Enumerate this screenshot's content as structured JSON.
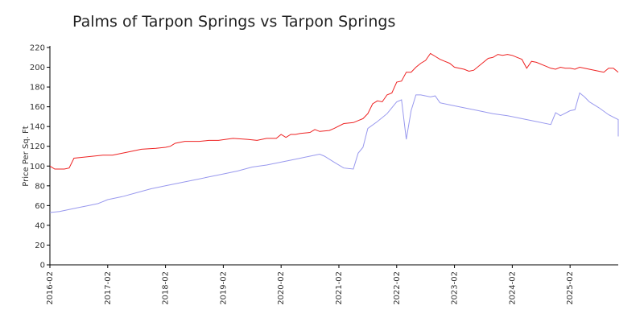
{
  "chart_data": {
    "type": "line",
    "title": "Palms of Tarpon Springs vs Tarpon Springs",
    "xlabel": "",
    "ylabel": "Price Per Sq. Ft",
    "ylim": [
      0,
      220
    ],
    "yticks": [
      0,
      20,
      40,
      60,
      80,
      100,
      120,
      140,
      160,
      180,
      200,
      220
    ],
    "xlim": [
      "2016-02",
      "2025-12"
    ],
    "xticks": [
      "2016-02",
      "2017-02",
      "2018-02",
      "2019-02",
      "2020-02",
      "2021-02",
      "2022-02",
      "2023-02",
      "2024-02",
      "2025-02"
    ],
    "grid": false,
    "legend": "none",
    "series": [
      {
        "color": "#ee2222",
        "points": [
          [
            "2016-02",
            100
          ],
          [
            "2016-03",
            97
          ],
          [
            "2016-05",
            97
          ],
          [
            "2016-06",
            98
          ],
          [
            "2016-07",
            108
          ],
          [
            "2016-09",
            109
          ],
          [
            "2016-11",
            110
          ],
          [
            "2017-01",
            111
          ],
          [
            "2017-03",
            111
          ],
          [
            "2017-06",
            114
          ],
          [
            "2017-09",
            117
          ],
          [
            "2017-12",
            118
          ],
          [
            "2018-02",
            119
          ],
          [
            "2018-03",
            120
          ],
          [
            "2018-04",
            123
          ],
          [
            "2018-06",
            125
          ],
          [
            "2018-09",
            125
          ],
          [
            "2018-11",
            126
          ],
          [
            "2019-01",
            126
          ],
          [
            "2019-04",
            128
          ],
          [
            "2019-07",
            127
          ],
          [
            "2019-09",
            126
          ],
          [
            "2019-11",
            128
          ],
          [
            "2020-01",
            128
          ],
          [
            "2020-02",
            132
          ],
          [
            "2020-03",
            129
          ],
          [
            "2020-04",
            132
          ],
          [
            "2020-05",
            132
          ],
          [
            "2020-06",
            133
          ],
          [
            "2020-08",
            134
          ],
          [
            "2020-09",
            137
          ],
          [
            "2020-10",
            135
          ],
          [
            "2020-12",
            136
          ],
          [
            "2021-01",
            138
          ],
          [
            "2021-03",
            143
          ],
          [
            "2021-05",
            144
          ],
          [
            "2021-06",
            146
          ],
          [
            "2021-07",
            148
          ],
          [
            "2021-08",
            153
          ],
          [
            "2021-09",
            163
          ],
          [
            "2021-10",
            166
          ],
          [
            "2021-11",
            165
          ],
          [
            "2021-12",
            172
          ],
          [
            "2022-01",
            174
          ],
          [
            "2022-02",
            185
          ],
          [
            "2022-03",
            186
          ],
          [
            "2022-04",
            195
          ],
          [
            "2022-05",
            195
          ],
          [
            "2022-06",
            200
          ],
          [
            "2022-07",
            204
          ],
          [
            "2022-08",
            207
          ],
          [
            "2022-09",
            214
          ],
          [
            "2022-10",
            211
          ],
          [
            "2022-11",
            208
          ],
          [
            "2022-12",
            206
          ],
          [
            "2023-01",
            204
          ],
          [
            "2023-02",
            200
          ],
          [
            "2023-04",
            198
          ],
          [
            "2023-05",
            196
          ],
          [
            "2023-06",
            197
          ],
          [
            "2023-08",
            205
          ],
          [
            "2023-09",
            209
          ],
          [
            "2023-10",
            210
          ],
          [
            "2023-11",
            213
          ],
          [
            "2023-12",
            212
          ],
          [
            "2024-01",
            213
          ],
          [
            "2024-02",
            212
          ],
          [
            "2024-03",
            210
          ],
          [
            "2024-04",
            208
          ],
          [
            "2024-05",
            199
          ],
          [
            "2024-06",
            206
          ],
          [
            "2024-07",
            205
          ],
          [
            "2024-09",
            201
          ],
          [
            "2024-10",
            199
          ],
          [
            "2024-11",
            198
          ],
          [
            "2024-12",
            200
          ],
          [
            "2025-01",
            199
          ],
          [
            "2025-02",
            199
          ],
          [
            "2025-03",
            198
          ],
          [
            "2025-04",
            200
          ],
          [
            "2025-05",
            199
          ],
          [
            "2025-07",
            197
          ],
          [
            "2025-08",
            196
          ],
          [
            "2025-09",
            195
          ],
          [
            "2025-10",
            199
          ],
          [
            "2025-11",
            199
          ],
          [
            "2025-12",
            195
          ]
        ]
      },
      {
        "color": "#9999ee",
        "points": [
          [
            "2016-02",
            53
          ],
          [
            "2016-04",
            54
          ],
          [
            "2016-06",
            56
          ],
          [
            "2016-08",
            58
          ],
          [
            "2016-10",
            60
          ],
          [
            "2016-12",
            62
          ],
          [
            "2017-02",
            66
          ],
          [
            "2017-05",
            69
          ],
          [
            "2017-08",
            73
          ],
          [
            "2017-11",
            77
          ],
          [
            "2018-02",
            80
          ],
          [
            "2018-05",
            83
          ],
          [
            "2018-08",
            86
          ],
          [
            "2018-11",
            89
          ],
          [
            "2019-02",
            92
          ],
          [
            "2019-05",
            95
          ],
          [
            "2019-08",
            99
          ],
          [
            "2019-11",
            101
          ],
          [
            "2020-02",
            104
          ],
          [
            "2020-05",
            107
          ],
          [
            "2020-08",
            110
          ],
          [
            "2020-10",
            112
          ],
          [
            "2020-11",
            110
          ],
          [
            "2021-01",
            104
          ],
          [
            "2021-03",
            98
          ],
          [
            "2021-05",
            97
          ],
          [
            "2021-06",
            113
          ],
          [
            "2021-07",
            119
          ],
          [
            "2021-08",
            138
          ],
          [
            "2021-10",
            145
          ],
          [
            "2021-12",
            153
          ],
          [
            "2022-02",
            165
          ],
          [
            "2022-03",
            167
          ],
          [
            "2022-04",
            127
          ],
          [
            "2022-05",
            156
          ],
          [
            "2022-06",
            172
          ],
          [
            "2022-07",
            172
          ],
          [
            "2022-08",
            171
          ],
          [
            "2022-09",
            170
          ],
          [
            "2022-10",
            171
          ],
          [
            "2022-11",
            164
          ],
          [
            "2023-01",
            162
          ],
          [
            "2023-04",
            159
          ],
          [
            "2023-07",
            156
          ],
          [
            "2023-10",
            153
          ],
          [
            "2024-01",
            151
          ],
          [
            "2024-04",
            148
          ],
          [
            "2024-07",
            145
          ],
          [
            "2024-10",
            142
          ],
          [
            "2024-11",
            154
          ],
          [
            "2024-12",
            151
          ],
          [
            "2025-02",
            156
          ],
          [
            "2025-03",
            157
          ],
          [
            "2025-04",
            174
          ],
          [
            "2025-05",
            170
          ],
          [
            "2025-06",
            165
          ],
          [
            "2025-08",
            159
          ],
          [
            "2025-10",
            152
          ],
          [
            "2025-12",
            147
          ],
          [
            "2026-01",
            143
          ],
          [
            "2026-02",
            142
          ],
          [
            "2026-03",
            130
          ]
        ]
      }
    ]
  }
}
